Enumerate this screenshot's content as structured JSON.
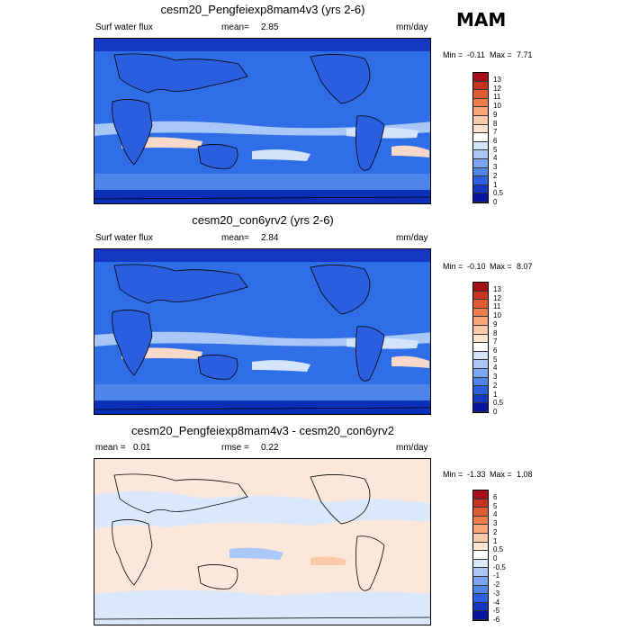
{
  "season": "MAM",
  "panels": [
    {
      "title": "cesm20_Pengfeiexp8mam4v3 (yrs 2-6)",
      "left_label": "Surf water flux",
      "stat_label": "mean=",
      "stat_value": "2.85",
      "units": "mm/day",
      "min_label": "Min =",
      "min_value": "-0.11",
      "max_label": "Max =",
      "max_value": "7.71",
      "colorbar_levels": [
        "13",
        "12",
        "11",
        "10",
        "9",
        "8",
        "7",
        "6",
        "5",
        "4",
        "3",
        "2",
        "1",
        "0.5",
        "0"
      ]
    },
    {
      "title": "cesm20_con6yrv2 (yrs 2-6)",
      "left_label": "Surf water flux",
      "stat_label": "mean=",
      "stat_value": "2.84",
      "units": "mm/day",
      "min_label": "Min =",
      "min_value": "-0.10",
      "max_label": "Max =",
      "max_value": "8.07",
      "colorbar_levels": [
        "13",
        "12",
        "11",
        "10",
        "9",
        "8",
        "7",
        "6",
        "5",
        "4",
        "3",
        "2",
        "1",
        "0.5",
        "0"
      ]
    },
    {
      "title": "cesm20_Pengfeiexp8mam4v3 - cesm20_con6yrv2",
      "mean_label": "mean =",
      "mean_value": "0.01",
      "rmse_label": "rmse =",
      "rmse_value": "0.22",
      "units": "mm/day",
      "min_label": "Min =",
      "min_value": "-1.33",
      "max_label": "Max =",
      "max_value": "1.08",
      "colorbar_levels": [
        "6",
        "5",
        "4",
        "3",
        "2",
        "1",
        "0.5",
        "0",
        "-0.5",
        "-1",
        "-2",
        "-3",
        "-4",
        "-5",
        "-6"
      ]
    }
  ],
  "colors": {
    "flux_scale": [
      "#a50f15",
      "#c8321e",
      "#e05a32",
      "#f07d4f",
      "#f9a77a",
      "#fbc9a7",
      "#fde3cf",
      "#ffffff",
      "#d4e4fb",
      "#a9c8f7",
      "#7ba6f0",
      "#4f84ea",
      "#2c5fe0",
      "#1438c2",
      "#08129a"
    ],
    "diff_scale": [
      "#a50f15",
      "#c8321e",
      "#e05a32",
      "#f07d4f",
      "#f9a77a",
      "#fbc9a7",
      "#fde6d4",
      "#ffffff",
      "#dbe8fc",
      "#a9c8f7",
      "#7ba6f0",
      "#4f84ea",
      "#2c5fe0",
      "#1438c2",
      "#08129a"
    ],
    "ocean_mid": "#2f6ee6",
    "ocean_dark": "#0a2fb8",
    "ocean_light": "#a9c8f7",
    "band_pale": "#f6d9c8",
    "land": "#2c5fe0",
    "diff_bg": "#fbe8db",
    "diff_blue": "#dbe8fc"
  },
  "chart_data": [
    {
      "type": "heatmap",
      "title": "cesm20_Pengfeiexp8mam4v3 (yrs 2-6)",
      "variable": "Surf water flux",
      "units": "mm/day",
      "mean": 2.85,
      "min": -0.11,
      "max": 7.71,
      "levels": [
        0,
        0.5,
        1,
        2,
        3,
        4,
        5,
        6,
        7,
        8,
        9,
        10,
        11,
        12,
        13
      ]
    },
    {
      "type": "heatmap",
      "title": "cesm20_con6yrv2 (yrs 2-6)",
      "variable": "Surf water flux",
      "units": "mm/day",
      "mean": 2.84,
      "min": -0.1,
      "max": 8.07,
      "levels": [
        0,
        0.5,
        1,
        2,
        3,
        4,
        5,
        6,
        7,
        8,
        9,
        10,
        11,
        12,
        13
      ]
    },
    {
      "type": "heatmap",
      "title": "cesm20_Pengfeiexp8mam4v3 - cesm20_con6yrv2",
      "units": "mm/day",
      "mean": 0.01,
      "rmse": 0.22,
      "min": -1.33,
      "max": 1.08,
      "levels": [
        -6,
        -5,
        -4,
        -3,
        -2,
        -1,
        -0.5,
        0,
        0.5,
        1,
        2,
        3,
        4,
        5,
        6
      ]
    }
  ]
}
